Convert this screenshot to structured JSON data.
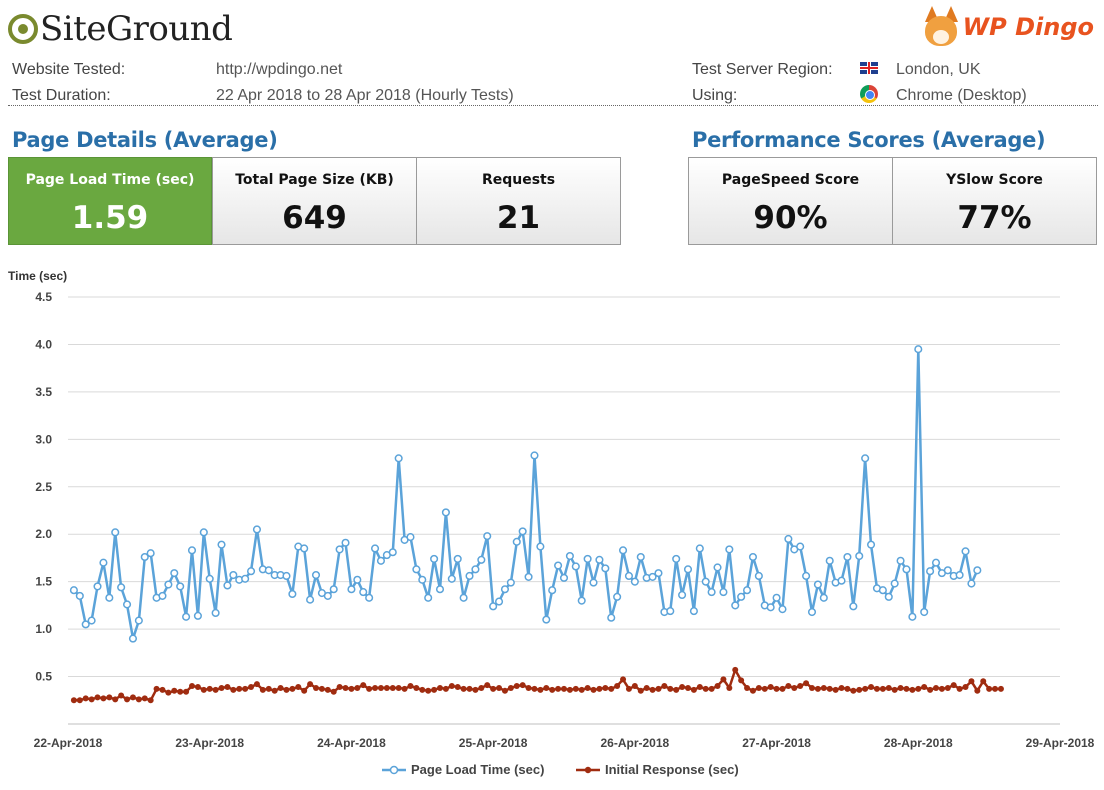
{
  "header": {
    "logo_left": "SiteGround",
    "logo_right": "WP Dingo",
    "website_tested_label": "Website Tested:",
    "website_tested_value": "http://wpdingo.net",
    "test_duration_label": "Test Duration:",
    "test_duration_value": "22 Apr 2018 to 28 Apr 2018 (Hourly Tests)",
    "region_label": "Test Server Region:",
    "region_value": "London, UK",
    "using_label": "Using:",
    "using_value": "Chrome (Desktop)",
    "region_icon": "uk-flag-icon",
    "browser_icon": "chrome-icon"
  },
  "page_details": {
    "title": "Page Details (Average)",
    "boxes": [
      {
        "label": "Page Load Time (sec)",
        "value": "1.59"
      },
      {
        "label": "Total Page Size (KB)",
        "value": "649"
      },
      {
        "label": "Requests",
        "value": "21"
      }
    ]
  },
  "performance": {
    "title": "Performance Scores (Average)",
    "boxes": [
      {
        "label": "PageSpeed Score",
        "value": "90%"
      },
      {
        "label": "YSlow Score",
        "value": "77%"
      }
    ]
  },
  "colors": {
    "accent_title": "#2a6fa8",
    "highlight_box": "#6aa840",
    "series_load": "#5ba3d9",
    "series_response": "#a02c10"
  },
  "chart_data": {
    "type": "line",
    "ylabel": "Time (sec)",
    "ylim": [
      0,
      4.5
    ],
    "yticks": [
      "0.5",
      "1.0",
      "1.5",
      "2.0",
      "2.5",
      "3.0",
      "3.5",
      "4.0",
      "4.5"
    ],
    "xlim": [
      "2018-04-22",
      "2018-04-29"
    ],
    "xticks": [
      "22-Apr-2018",
      "23-Apr-2018",
      "24-Apr-2018",
      "25-Apr-2018",
      "26-Apr-2018",
      "27-Apr-2018",
      "28-Apr-2018",
      "29-Apr-2018"
    ],
    "grid": "horizontal",
    "legend": "bottom",
    "sample_interval": "hourly from 22-Apr-2018 00:00",
    "series": [
      {
        "name": "Page Load Time (sec)",
        "color": "#5ba3d9",
        "marker": "circle-open",
        "values": [
          1.41,
          1.35,
          1.05,
          1.09,
          1.45,
          1.7,
          1.33,
          2.02,
          1.44,
          1.26,
          0.9,
          1.09,
          1.76,
          1.8,
          1.33,
          1.35,
          1.47,
          1.59,
          1.45,
          1.13,
          1.83,
          1.14,
          2.02,
          1.53,
          1.17,
          1.89,
          1.46,
          1.57,
          1.52,
          1.53,
          1.61,
          2.05,
          1.63,
          1.62,
          1.57,
          1.57,
          1.56,
          1.37,
          1.87,
          1.85,
          1.31,
          1.57,
          1.38,
          1.35,
          1.42,
          1.84,
          1.91,
          1.42,
          1.52,
          1.39,
          1.33,
          1.85,
          1.72,
          1.78,
          1.81,
          2.8,
          1.94,
          1.97,
          1.63,
          1.52,
          1.33,
          1.74,
          1.42,
          2.23,
          1.53,
          1.74,
          1.33,
          1.56,
          1.63,
          1.73,
          1.98,
          1.24,
          1.29,
          1.42,
          1.49,
          1.92,
          2.03,
          1.55,
          2.83,
          1.87,
          1.1,
          1.41,
          1.67,
          1.54,
          1.77,
          1.66,
          1.3,
          1.74,
          1.49,
          1.73,
          1.64,
          1.12,
          1.34,
          1.83,
          1.56,
          1.5,
          1.76,
          1.54,
          1.55,
          1.59,
          1.18,
          1.19,
          1.74,
          1.36,
          1.63,
          1.19,
          1.85,
          1.5,
          1.39,
          1.65,
          1.39,
          1.84,
          1.25,
          1.34,
          1.41,
          1.76,
          1.56,
          1.25,
          1.23,
          1.33,
          1.21,
          1.95,
          1.84,
          1.87,
          1.56,
          1.18,
          1.47,
          1.33,
          1.72,
          1.49,
          1.51,
          1.76,
          1.24,
          1.77,
          2.8,
          1.89,
          1.43,
          1.41,
          1.34,
          1.48,
          1.72,
          1.63,
          1.13,
          3.95,
          1.18,
          1.61,
          1.7,
          1.59,
          1.62,
          1.56,
          1.57,
          1.82,
          1.48,
          1.62
        ]
      },
      {
        "name": "Initial Response (sec)",
        "color": "#a02c10",
        "marker": "circle-filled",
        "values": [
          0.25,
          0.25,
          0.27,
          0.26,
          0.28,
          0.27,
          0.28,
          0.26,
          0.3,
          0.26,
          0.28,
          0.26,
          0.27,
          0.25,
          0.37,
          0.36,
          0.33,
          0.35,
          0.34,
          0.34,
          0.4,
          0.39,
          0.36,
          0.37,
          0.36,
          0.38,
          0.39,
          0.36,
          0.37,
          0.37,
          0.39,
          0.42,
          0.36,
          0.37,
          0.35,
          0.38,
          0.36,
          0.37,
          0.39,
          0.35,
          0.42,
          0.38,
          0.37,
          0.36,
          0.34,
          0.39,
          0.38,
          0.37,
          0.38,
          0.41,
          0.37,
          0.38,
          0.38,
          0.38,
          0.38,
          0.38,
          0.37,
          0.4,
          0.38,
          0.36,
          0.35,
          0.36,
          0.38,
          0.37,
          0.4,
          0.39,
          0.37,
          0.37,
          0.36,
          0.38,
          0.41,
          0.37,
          0.38,
          0.35,
          0.38,
          0.4,
          0.41,
          0.38,
          0.37,
          0.36,
          0.38,
          0.36,
          0.37,
          0.37,
          0.36,
          0.37,
          0.36,
          0.38,
          0.36,
          0.37,
          0.38,
          0.37,
          0.4,
          0.47,
          0.37,
          0.4,
          0.35,
          0.38,
          0.36,
          0.37,
          0.4,
          0.37,
          0.36,
          0.39,
          0.38,
          0.36,
          0.39,
          0.37,
          0.37,
          0.4,
          0.47,
          0.38,
          0.57,
          0.46,
          0.38,
          0.35,
          0.38,
          0.37,
          0.39,
          0.37,
          0.37,
          0.4,
          0.38,
          0.4,
          0.43,
          0.38,
          0.37,
          0.38,
          0.37,
          0.36,
          0.38,
          0.37,
          0.35,
          0.36,
          0.37,
          0.39,
          0.37,
          0.37,
          0.38,
          0.36,
          0.38,
          0.37,
          0.36,
          0.37,
          0.39,
          0.36,
          0.38,
          0.37,
          0.38,
          0.41,
          0.37,
          0.39,
          0.45,
          0.35,
          0.45,
          0.37,
          0.37,
          0.37
        ]
      }
    ]
  }
}
